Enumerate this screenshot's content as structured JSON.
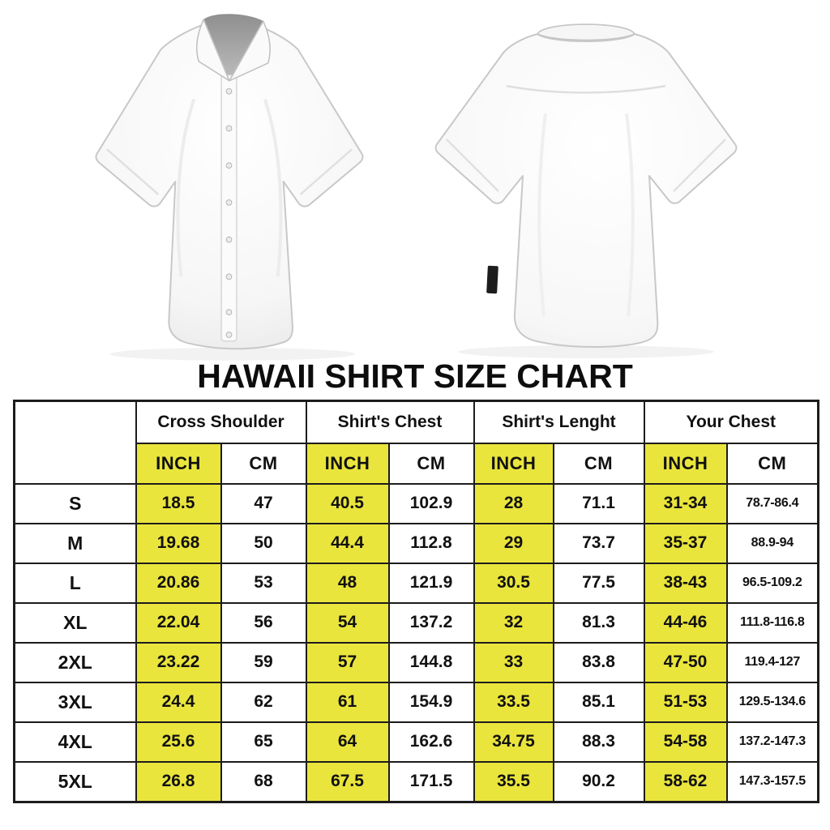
{
  "title": "HAWAII SHIRT SIZE CHART",
  "images": {
    "front": "shirt-front-view",
    "back": "shirt-back-view"
  },
  "colors": {
    "highlight_yellow": "#EAE53C",
    "border": "#1c1c1c",
    "text": "#111111",
    "background": "#ffffff"
  },
  "table": {
    "groups": [
      "Cross Shoulder",
      "Shirt's Chest",
      "Shirt's Lenght",
      "Your Chest"
    ],
    "units": [
      "INCH",
      "CM"
    ],
    "rows": [
      {
        "size": "S",
        "values": [
          "18.5",
          "47",
          "40.5",
          "102.9",
          "28",
          "71.1",
          "31-34",
          "78.7-86.4"
        ]
      },
      {
        "size": "M",
        "values": [
          "19.68",
          "50",
          "44.4",
          "112.8",
          "29",
          "73.7",
          "35-37",
          "88.9-94"
        ]
      },
      {
        "size": "L",
        "values": [
          "20.86",
          "53",
          "48",
          "121.9",
          "30.5",
          "77.5",
          "38-43",
          "96.5-109.2"
        ]
      },
      {
        "size": "XL",
        "values": [
          "22.04",
          "56",
          "54",
          "137.2",
          "32",
          "81.3",
          "44-46",
          "111.8-116.8"
        ]
      },
      {
        "size": "2XL",
        "values": [
          "23.22",
          "59",
          "57",
          "144.8",
          "33",
          "83.8",
          "47-50",
          "119.4-127"
        ]
      },
      {
        "size": "3XL",
        "values": [
          "24.4",
          "62",
          "61",
          "154.9",
          "33.5",
          "85.1",
          "51-53",
          "129.5-134.6"
        ]
      },
      {
        "size": "4XL",
        "values": [
          "25.6",
          "65",
          "64",
          "162.6",
          "34.75",
          "88.3",
          "54-58",
          "137.2-147.3"
        ]
      },
      {
        "size": "5XL",
        "values": [
          "26.8",
          "68",
          "67.5",
          "171.5",
          "35.5",
          "90.2",
          "58-62",
          "147.3-157.5"
        ]
      }
    ]
  }
}
